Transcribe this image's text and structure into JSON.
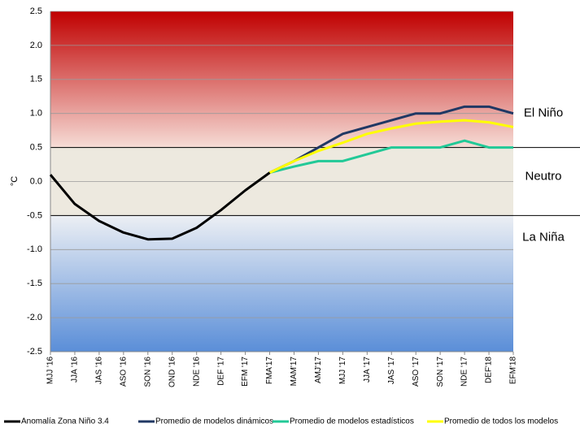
{
  "chart_data": {
    "type": "line",
    "y_label": "°C",
    "categories": [
      "MJJ '16",
      "JJA '16",
      "JAS '16",
      "ASO '16",
      "SON '16",
      "OND '16",
      "NDE '16",
      "DEF '17",
      "EFM '17",
      "FMA'17",
      "MAM'17",
      "AMJ'17",
      "MJJ '17",
      "JJA '17",
      "JAS '17",
      "ASO '17",
      "SON '17",
      "NDE '17",
      "DEF'18",
      "EFM'18"
    ],
    "series": [
      {
        "name": "Anomalía Zona Niño 3.4",
        "color": "#000000",
        "values": [
          0.1,
          -0.33,
          -0.58,
          -0.75,
          -0.85,
          -0.84,
          -0.68,
          -0.42,
          -0.13,
          0.13,
          null,
          null,
          null,
          null,
          null,
          null,
          null,
          null,
          null,
          null
        ]
      },
      {
        "name": "Promedio de modelos dinámicos",
        "color": "#203864",
        "values": [
          null,
          null,
          null,
          null,
          null,
          null,
          null,
          null,
          null,
          0.13,
          0.3,
          0.5,
          0.7,
          0.8,
          0.9,
          1.0,
          1.0,
          1.1,
          1.1,
          1.0
        ]
      },
      {
        "name": "Promedio de modelos estadísticos",
        "color": "#22c997",
        "values": [
          null,
          null,
          null,
          null,
          null,
          null,
          null,
          null,
          null,
          0.13,
          0.22,
          0.3,
          0.3,
          0.4,
          0.5,
          0.5,
          0.5,
          0.6,
          0.5,
          0.5
        ]
      },
      {
        "name": "Promedio de todos los modelos",
        "color": "#ffff00",
        "values": [
          null,
          null,
          null,
          null,
          null,
          null,
          null,
          null,
          null,
          0.13,
          0.3,
          0.45,
          0.57,
          0.7,
          0.78,
          0.85,
          0.88,
          0.9,
          0.87,
          0.8
        ]
      }
    ],
    "ylim": [
      -2.5,
      2.5
    ],
    "yticks": [
      -2.5,
      {
        "value": -2.0,
        "label": "-2.0"
      },
      -1.5,
      {
        "value": -1.0,
        "label": "-1.0"
      },
      -0.5,
      {
        "value": 0.0,
        "label": "0.0"
      },
      0.5,
      {
        "value": 1.0,
        "label": "1.0"
      },
      1.5,
      {
        "value": 2.0,
        "label": "2.0"
      },
      2.5
    ],
    "grid": true,
    "regions": [
      {
        "label": "El Niño",
        "from": 0.5,
        "to": 2.5,
        "colors": [
          "#c00000",
          "#f6dcd6"
        ]
      },
      {
        "label": "Neutro",
        "from": -0.5,
        "to": 0.5,
        "colors": [
          "#ede9df",
          "#ede9df"
        ]
      },
      {
        "label": "La Niña",
        "from": -2.5,
        "to": -0.5,
        "colors": [
          "#eceff4",
          "#5a8ed8"
        ]
      }
    ],
    "legend": "bottom"
  }
}
